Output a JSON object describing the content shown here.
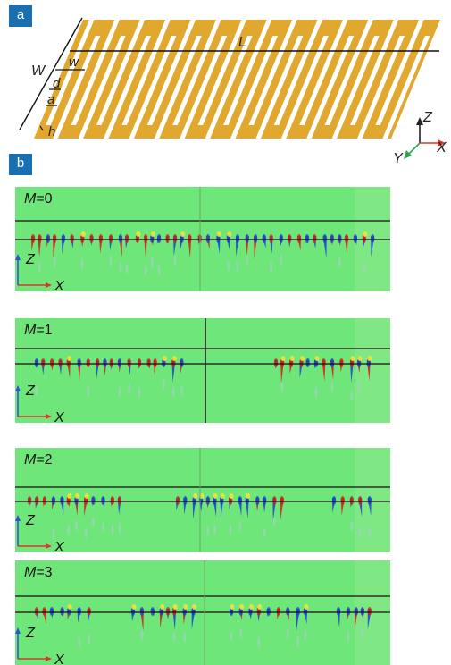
{
  "panel_a": {
    "badge": "a",
    "labels": {
      "L": "L",
      "W": "W",
      "w": "w",
      "d": "d",
      "a": "a",
      "h": "h"
    },
    "axes": {
      "z": "Z",
      "x": "X",
      "y": "Y"
    },
    "colors": {
      "metal": "#e0a82e",
      "axis_z": "#222222",
      "axis_x": "#d33a2c",
      "axis_y": "#2aa84a"
    }
  },
  "panel_b": {
    "badge": "b",
    "axes": {
      "z": "Z",
      "x": "X"
    },
    "field_colors": {
      "background": "#6fe67a",
      "positive": "#d41a1a",
      "negative": "#1a3fd4"
    },
    "maps": [
      {
        "mode_var": "M",
        "mode_value": "=0"
      },
      {
        "mode_var": "M",
        "mode_value": "=1"
      },
      {
        "mode_var": "M",
        "mode_value": "=2"
      },
      {
        "mode_var": "M",
        "mode_value": "=3"
      }
    ]
  }
}
